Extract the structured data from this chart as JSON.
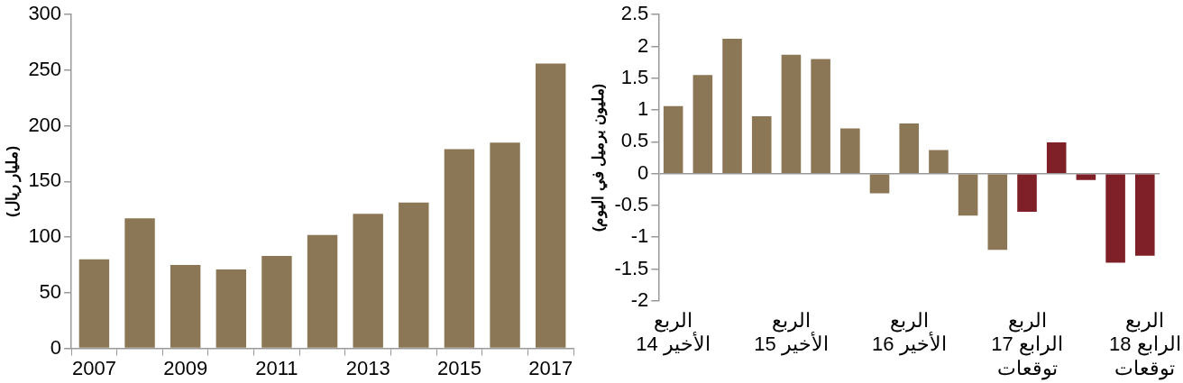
{
  "chart_data": [
    {
      "type": "bar",
      "ylabel": "(مليار ريال)",
      "categories": [
        "2007",
        null,
        "2009",
        null,
        "2011",
        null,
        "2013",
        null,
        "2015",
        null,
        "2017"
      ],
      "values": [
        80,
        117,
        75,
        71,
        83,
        102,
        121,
        131,
        179,
        185,
        256
      ],
      "color": "#8b7755",
      "ylim": [
        0,
        300
      ],
      "yticks": [
        0,
        50,
        100,
        150,
        200,
        250,
        300
      ]
    },
    {
      "type": "bar",
      "ylabel": "(مليون برميل في اليوم)",
      "categories": [
        "الربع\nالأخير 14",
        null,
        null,
        null,
        "الربع\nالأخير 15",
        null,
        null,
        null,
        "الربع\nالأخير 16",
        null,
        null,
        null,
        "الربع\nالرابع 17\nتوقعات",
        null,
        null,
        null,
        "الربع\nالرابع 18\nتوقعات"
      ],
      "values": [
        1.06,
        1.55,
        2.12,
        0.9,
        1.87,
        1.8,
        0.71,
        -0.31,
        0.79,
        0.37,
        -0.66,
        -1.2,
        -0.6,
        0.49,
        -0.1,
        -1.4,
        -1.29
      ],
      "colors": [
        "#8b7755",
        "#8b7755",
        "#8b7755",
        "#8b7755",
        "#8b7755",
        "#8b7755",
        "#8b7755",
        "#8b7755",
        "#8b7755",
        "#8b7755",
        "#8b7755",
        "#8b7755",
        "#7f1f27",
        "#7f1f27",
        "#7f1f27",
        "#7f1f27",
        "#7f1f27"
      ],
      "ylim": [
        -2,
        2.5
      ],
      "yticks": [
        -2,
        -1.5,
        -1,
        -0.5,
        0,
        0.5,
        1,
        1.5,
        2,
        2.5
      ]
    }
  ]
}
